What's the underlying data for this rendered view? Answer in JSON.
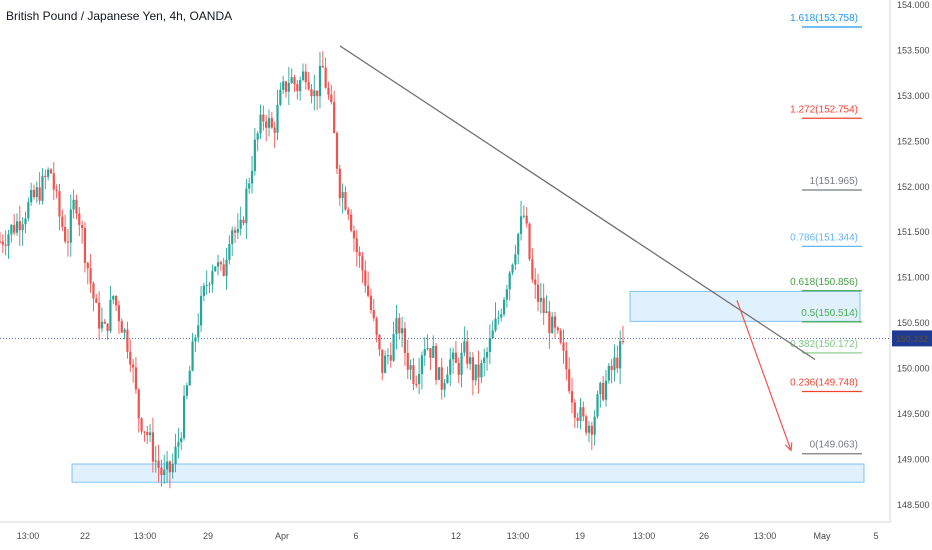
{
  "chart_data": {
    "type": "candlestick",
    "title": "British Pound / Japanese Yen, 4h, OANDA",
    "ylim": [
      148.4,
      154.0
    ],
    "y_ticks": [
      "154.000",
      "153.500",
      "153.000",
      "152.500",
      "152.000",
      "151.500",
      "151.000",
      "150.500",
      "150.000",
      "149.500",
      "149.000",
      "148.500"
    ],
    "y_tick_values": [
      154.0,
      153.5,
      153.0,
      152.5,
      152.0,
      151.5,
      151.0,
      150.5,
      150.0,
      149.5,
      149.0,
      148.5
    ],
    "x_ticks": [
      "13:00",
      "22",
      "13:00",
      "29",
      "Apr",
      "6",
      "12",
      "13:00",
      "19",
      "13:00",
      "26",
      "13:00",
      "May",
      "5"
    ],
    "colors": {
      "up": "#26a69a",
      "down": "#ef5350",
      "axis": "#787b86",
      "box": "#bbdefb",
      "trend": "#707070",
      "arrow": "#ef5350",
      "price_tag": "#1f3a93"
    },
    "last_price": {
      "label": "150.332",
      "value": 150.332
    },
    "fib_levels": [
      {
        "label": "1.618(153.758)",
        "value": 153.758,
        "color": "#2196f3"
      },
      {
        "label": "1.272(152.754)",
        "value": 152.754,
        "color": "#f44336"
      },
      {
        "label": "1(151.965)",
        "value": 151.965,
        "color": "#787b86"
      },
      {
        "label": "0.786(151.344)",
        "value": 151.344,
        "color": "#64b5f6"
      },
      {
        "label": "0.618(150.856)",
        "value": 150.856,
        "color": "#43a047"
      },
      {
        "label": "0.5(150.514)",
        "value": 150.514,
        "color": "#4caf50"
      },
      {
        "label": "0.382(150.172)",
        "value": 150.172,
        "color": "#81c784"
      },
      {
        "label": "0.236(149.748)",
        "value": 149.748,
        "color": "#f44336"
      },
      {
        "label": "0(149.063)",
        "value": 149.063,
        "color": "#787b86"
      }
    ],
    "zones": [
      {
        "name": "support-zone",
        "y_low": 148.75,
        "y_high": 148.95
      },
      {
        "name": "resistance-zone",
        "y_low": 150.52,
        "y_high": 150.85
      }
    ],
    "path_points": [
      [
        0,
        151.4
      ],
      [
        8,
        151.6
      ],
      [
        14,
        151.8
      ],
      [
        20,
        152.0
      ],
      [
        24,
        152.2
      ],
      [
        28,
        151.7
      ],
      [
        32,
        151.4
      ],
      [
        36,
        151.9
      ],
      [
        42,
        151.1
      ],
      [
        46,
        150.6
      ],
      [
        50,
        150.4
      ],
      [
        54,
        150.8
      ],
      [
        58,
        150.5
      ],
      [
        62,
        150.2
      ],
      [
        66,
        149.5
      ],
      [
        70,
        149.3
      ],
      [
        74,
        149.0
      ],
      [
        78,
        148.8
      ],
      [
        82,
        148.9
      ],
      [
        86,
        149.3
      ],
      [
        90,
        149.9
      ],
      [
        94,
        150.5
      ],
      [
        98,
        150.9
      ],
      [
        102,
        151.2
      ],
      [
        106,
        151.0
      ],
      [
        110,
        151.6
      ],
      [
        114,
        151.4
      ],
      [
        118,
        152.0
      ],
      [
        122,
        152.5
      ],
      [
        126,
        152.8
      ],
      [
        130,
        152.6
      ],
      [
        134,
        153.0
      ],
      [
        138,
        153.2
      ],
      [
        142,
        153.1
      ],
      [
        146,
        153.3
      ],
      [
        150,
        153.0
      ],
      [
        154,
        153.3
      ],
      [
        158,
        152.8
      ],
      [
        162,
        152.0
      ],
      [
        166,
        151.8
      ],
      [
        170,
        151.3
      ],
      [
        174,
        151.0
      ],
      [
        178,
        150.5
      ],
      [
        182,
        150.0
      ],
      [
        186,
        150.2
      ],
      [
        190,
        150.5
      ],
      [
        194,
        150.1
      ],
      [
        198,
        149.9
      ],
      [
        202,
        150.3
      ],
      [
        206,
        150.2
      ],
      [
        210,
        149.8
      ],
      [
        214,
        150.1
      ],
      [
        218,
        150.0
      ],
      [
        222,
        150.2
      ],
      [
        226,
        149.9
      ],
      [
        230,
        150.0
      ],
      [
        234,
        150.3
      ],
      [
        238,
        150.6
      ],
      [
        242,
        151.0
      ],
      [
        246,
        151.4
      ],
      [
        250,
        151.7
      ],
      [
        254,
        150.9
      ],
      [
        258,
        150.7
      ],
      [
        262,
        150.5
      ],
      [
        266,
        150.3
      ],
      [
        270,
        150.0
      ],
      [
        274,
        149.6
      ],
      [
        278,
        149.4
      ],
      [
        282,
        149.4
      ],
      [
        286,
        149.7
      ],
      [
        290,
        149.9
      ],
      [
        294,
        150.1
      ],
      [
        298,
        150.3
      ]
    ],
    "x_domain": [
      0,
      410
    ],
    "trendline": [
      [
        150,
        153.55
      ],
      [
        370,
        150.1
      ]
    ],
    "forecast_arrow": [
      [
        325,
        150.75
      ],
      [
        350,
        149.1
      ]
    ]
  }
}
